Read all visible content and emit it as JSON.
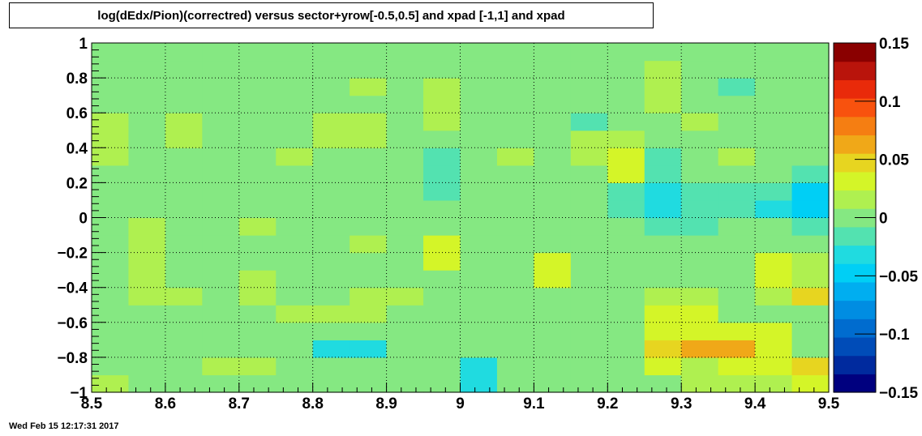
{
  "chart_data": {
    "type": "heatmap",
    "title": "log(dEdx/Pion)(correctred) versus sector+yrow[-0.5,0.5] and xpad [-1,1] and  xpad",
    "xlim": [
      8.5,
      9.5
    ],
    "ylim": [
      -1,
      1
    ],
    "zlim": [
      -0.15,
      0.15
    ],
    "x_ticks": [
      "8.5",
      "8.6",
      "8.7",
      "8.8",
      "8.9",
      "9",
      "9.1",
      "9.2",
      "9.3",
      "9.4",
      "9.5"
    ],
    "y_ticks": [
      "−1",
      "−0.8",
      "−0.6",
      "−0.4",
      "−0.2",
      "0",
      "0.2",
      "0.4",
      "0.6",
      "0.8",
      "1"
    ],
    "z_ticks": [
      "−0.15",
      "−0.1",
      "−0.05",
      "0",
      "0.05",
      "0.1",
      "0.15"
    ],
    "grid": true,
    "palette": [
      "#00007f",
      "#002a9e",
      "#004cb8",
      "#006ccf",
      "#008de2",
      "#00aef0",
      "#00cff5",
      "#20dbe0",
      "#53e2b0",
      "#85e882",
      "#aff050",
      "#d4f528",
      "#e7d520",
      "#f0a818",
      "#f57e12",
      "#f8520e",
      "#e92a0a",
      "#b9140b",
      "#8a0000"
    ],
    "x_bins": 20,
    "y_bins": 20,
    "bin_values": [
      [
        0.015,
        0.0,
        0.0,
        0.0,
        0.0,
        0.0,
        0.0,
        0.005,
        0.005,
        0.005,
        -0.03,
        0.0,
        0.0,
        0.0,
        0.0,
        0.005,
        0.01,
        0.015,
        0.01,
        0.03
      ],
      [
        0.0,
        0.0,
        0.0,
        0.015,
        0.015,
        0.0,
        0.0,
        0.005,
        0.005,
        0.0,
        -0.025,
        0.0,
        0.0,
        0.0,
        0.0,
        0.03,
        0.02,
        0.025,
        0.025,
        0.04
      ],
      [
        0.005,
        0.0,
        0.0,
        0.005,
        0.005,
        0.0,
        -0.025,
        -0.025,
        -0.005,
        0.0,
        0.0,
        0.0,
        0.0,
        0.0,
        0.0,
        0.055,
        0.06,
        0.06,
        0.035,
        0.0
      ],
      [
        0.0,
        0.005,
        0.0,
        0.0,
        0.0,
        0.0,
        0.0,
        0.005,
        0.005,
        0.0,
        0.0,
        0.005,
        0.005,
        0.0,
        0.0,
        0.035,
        0.035,
        0.035,
        0.035,
        0.0
      ],
      [
        0.0,
        0.005,
        0.005,
        0.005,
        0.005,
        0.015,
        0.015,
        0.015,
        0.005,
        0.0,
        0.0,
        0.005,
        0.005,
        0.0,
        0.0,
        0.035,
        0.035,
        0.0,
        0.005,
        0.0
      ],
      [
        0.0,
        0.015,
        0.015,
        0.0,
        0.015,
        0.0,
        0.0,
        0.015,
        0.015,
        0.0,
        0.0,
        0.005,
        0.005,
        0.005,
        0.0,
        0.015,
        0.015,
        0.005,
        0.015,
        0.045
      ],
      [
        0.0,
        0.015,
        0.0,
        0.0,
        0.015,
        0.005,
        0.005,
        0.005,
        0.005,
        0.0,
        0.0,
        0.005,
        0.025,
        0.0,
        0.005,
        0.005,
        0.005,
        0.005,
        0.025,
        0.015
      ],
      [
        0.0,
        0.015,
        0.0,
        0.0,
        0.0,
        0.0,
        0.0,
        0.005,
        0.005,
        0.025,
        0.0,
        0.005,
        0.025,
        0.0,
        0.005,
        0.005,
        0.005,
        0.005,
        0.025,
        0.015
      ],
      [
        0.0,
        0.015,
        0.0,
        0.0,
        0.0,
        0.0,
        0.0,
        0.015,
        0.005,
        0.025,
        0.0,
        0.005,
        0.005,
        0.005,
        0.0,
        0.005,
        0.005,
        0.005,
        0.0,
        0.0
      ],
      [
        0.0,
        0.015,
        0.0,
        0.005,
        0.015,
        0.005,
        0.005,
        0.005,
        0.005,
        0.005,
        0.005,
        0.005,
        0.0,
        0.0,
        -0.005,
        -0.015,
        -0.015,
        0.0,
        0.0,
        -0.015
      ],
      [
        0.0,
        0.0,
        0.0,
        0.0,
        0.0,
        0.0,
        0.0,
        0.0,
        0.005,
        0.005,
        0.005,
        0.005,
        0.0,
        0.0,
        -0.015,
        -0.035,
        -0.015,
        -0.015,
        -0.025,
        -0.045
      ],
      [
        0.0,
        0.0,
        0.005,
        0.005,
        0.0,
        0.0,
        0.005,
        0.0,
        0.005,
        -0.015,
        0.0,
        0.005,
        0.005,
        0.005,
        -0.015,
        -0.035,
        -0.015,
        -0.015,
        -0.015,
        -0.045
      ],
      [
        0.0,
        0.0,
        0.005,
        0.005,
        0.0,
        0.0,
        0.005,
        0.005,
        0.0,
        -0.015,
        0.0,
        0.005,
        0.0,
        0.005,
        0.035,
        -0.015,
        0.0,
        0.0,
        0.0,
        -0.015
      ],
      [
        0.015,
        0.0,
        0.005,
        0.005,
        0.0,
        0.015,
        0.005,
        0.005,
        0.0,
        -0.015,
        0.0,
        0.015,
        0.0,
        0.015,
        0.03,
        -0.015,
        0.0,
        0.015,
        0.0,
        0.0
      ],
      [
        0.015,
        0.0,
        0.015,
        0.005,
        0.0,
        0.0,
        0.015,
        0.015,
        0.0,
        0.0,
        0.0,
        0.0,
        0.0,
        0.015,
        0.015,
        0.0,
        0.005,
        0.0,
        0.0,
        0.0
      ],
      [
        0.015,
        0.0,
        0.015,
        0.005,
        0.0,
        0.0,
        0.015,
        0.015,
        0.0,
        0.015,
        0.0,
        0.0,
        0.0,
        -0.015,
        0.005,
        0.005,
        0.015,
        0.0,
        0.0,
        0.0
      ],
      [
        0.0,
        0.0,
        0.005,
        0.005,
        0.005,
        0.005,
        0.0,
        0.0,
        0.005,
        0.015,
        0.0,
        0.0,
        0.0,
        0.0,
        0.0,
        0.015,
        0.0,
        0.0,
        0.0,
        0.0
      ],
      [
        0.0,
        0.005,
        0.0,
        0.005,
        0.005,
        0.005,
        0.0,
        0.015,
        0.005,
        0.015,
        0.0,
        0.0,
        0.0,
        0.0,
        0.0,
        0.015,
        0.0,
        -0.015,
        0.0,
        0.0
      ],
      [
        0.005,
        0.005,
        0.005,
        0.005,
        0.005,
        0.005,
        0.0,
        0.005,
        0.0,
        0.0,
        0.0,
        0.0,
        0.0,
        0.0,
        0.0,
        0.015,
        0.0,
        0.0,
        0.0,
        0.0
      ],
      [
        0.005,
        0.005,
        0.005,
        0.005,
        0.005,
        0.005,
        0.0,
        0.005,
        0.0,
        0.0,
        0.0,
        0.0,
        0.0,
        0.0,
        0.0,
        0.005,
        0.0,
        0.005,
        0.0,
        0.005
      ]
    ]
  },
  "footer": {
    "timestamp": "Wed Feb 15 12:17:31 2017"
  }
}
